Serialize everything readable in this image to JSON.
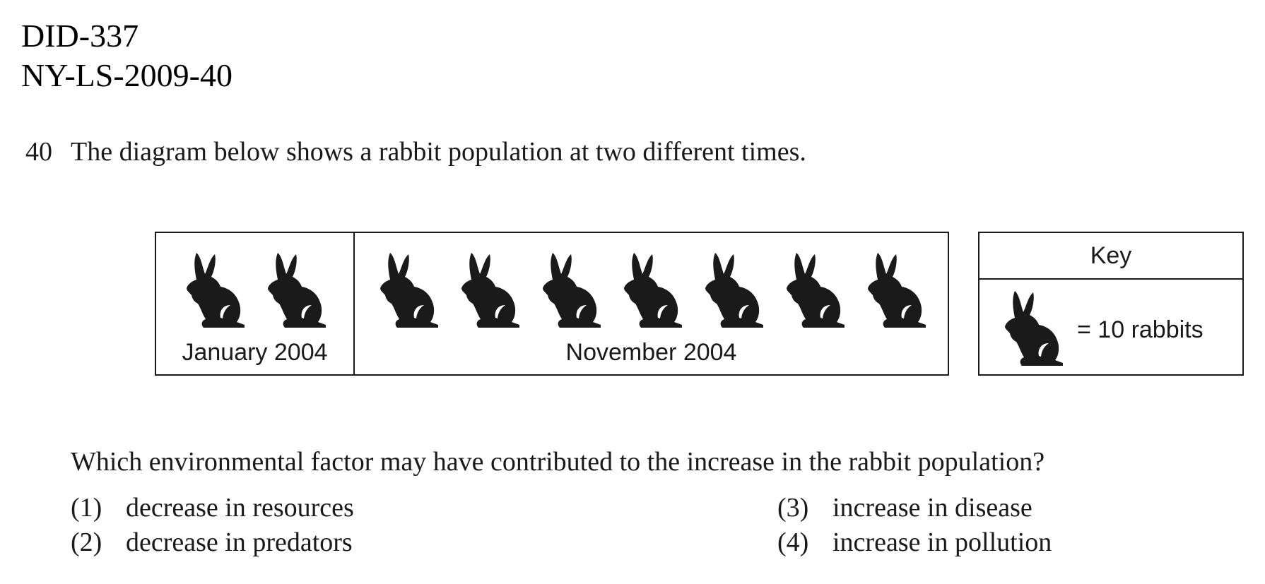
{
  "header": {
    "doc_id": "DID-337",
    "source": "NY-LS-2009-40"
  },
  "question": {
    "number": "40",
    "intro": "The diagram below shows a rabbit population at two different times.",
    "prompt": "Which environmental factor may have contributed to the increase in the rabbit population?",
    "choices": [
      {
        "num": "(1)",
        "text": "decrease in resources"
      },
      {
        "num": "(2)",
        "text": "decrease in predators"
      },
      {
        "num": "(3)",
        "text": "increase in disease"
      },
      {
        "num": "(4)",
        "text": "increase in pollution"
      }
    ]
  },
  "diagram": {
    "icon": "rabbit-icon",
    "panels": [
      {
        "label": "January 2004",
        "rabbit_count": 2
      },
      {
        "label": "November 2004",
        "rabbit_count": 7
      }
    ],
    "key": {
      "title": "Key",
      "value": "= 10 rabbits"
    }
  }
}
